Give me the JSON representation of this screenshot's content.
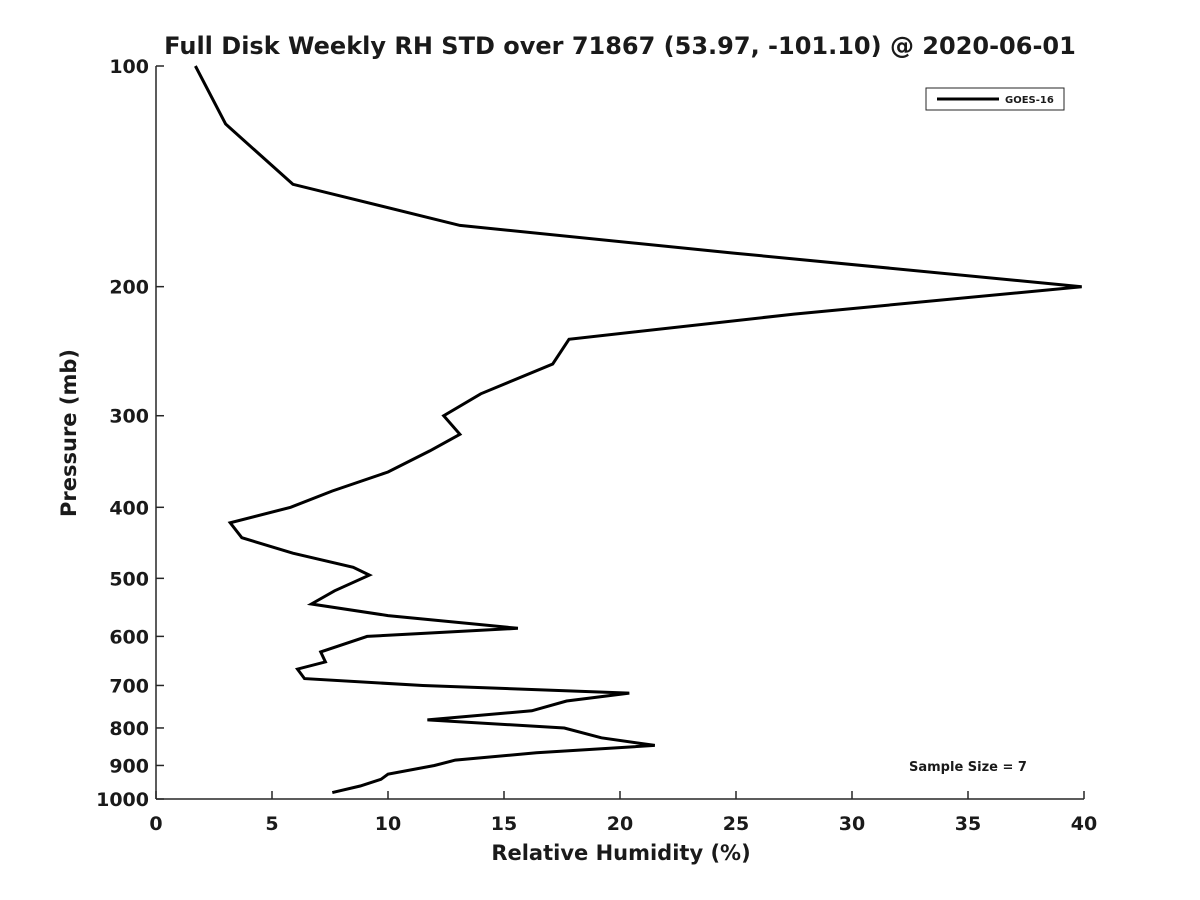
{
  "chart_data": {
    "type": "line",
    "title": "Full Disk Weekly RH STD over 71867 (53.97, -101.10) @ 2020-06-01",
    "xlabel": "Relative Humidity (%)",
    "ylabel": "Pressure (mb)",
    "xlim": [
      0,
      40
    ],
    "ylim": [
      100,
      1000
    ],
    "yscale": "log",
    "y_reversed": true,
    "grid": false,
    "x_ticks": [
      "0",
      "5",
      "10",
      "15",
      "20",
      "25",
      "30",
      "35",
      "40"
    ],
    "y_ticks": [
      "100",
      "200",
      "300",
      "400",
      "500",
      "600",
      "700",
      "800",
      "900",
      "1000"
    ],
    "legend": {
      "position": "top-right",
      "entries": [
        "GOES-16"
      ]
    },
    "annotation": "Sample Size = 7",
    "series": [
      {
        "name": "GOES-16",
        "color": "#000000",
        "points": [
          [
            1.7,
            100
          ],
          [
            3.0,
            120
          ],
          [
            5.9,
            145
          ],
          [
            13.1,
            165
          ],
          [
            24.9,
            180
          ],
          [
            39.9,
            200
          ],
          [
            27.5,
            218
          ],
          [
            17.8,
            236
          ],
          [
            17.1,
            255
          ],
          [
            14.0,
            280
          ],
          [
            12.4,
            300
          ],
          [
            13.1,
            318
          ],
          [
            11.8,
            335
          ],
          [
            10.0,
            358
          ],
          [
            7.6,
            380
          ],
          [
            5.8,
            400
          ],
          [
            3.2,
            420
          ],
          [
            3.7,
            440
          ],
          [
            5.9,
            462
          ],
          [
            8.5,
            483
          ],
          [
            9.2,
            495
          ],
          [
            7.7,
            520
          ],
          [
            6.7,
            542
          ],
          [
            10.0,
            562
          ],
          [
            15.6,
            585
          ],
          [
            9.1,
            600
          ],
          [
            7.1,
            630
          ],
          [
            7.3,
            650
          ],
          [
            6.1,
            665
          ],
          [
            6.4,
            685
          ],
          [
            11.5,
            700
          ],
          [
            20.4,
            717
          ],
          [
            17.7,
            735
          ],
          [
            16.2,
            758
          ],
          [
            11.7,
            780
          ],
          [
            17.6,
            800
          ],
          [
            19.2,
            825
          ],
          [
            21.5,
            845
          ],
          [
            16.4,
            865
          ],
          [
            12.9,
            885
          ],
          [
            12.0,
            900
          ],
          [
            10.0,
            925
          ],
          [
            9.7,
            940
          ],
          [
            8.8,
            960
          ],
          [
            7.6,
            980
          ]
        ]
      }
    ]
  }
}
